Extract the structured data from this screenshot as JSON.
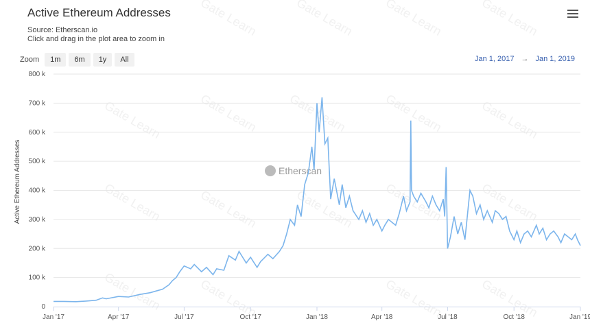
{
  "header": {
    "title": "Active Ethereum Addresses",
    "source": "Source: Etherscan.io",
    "hint": "Click and drag in the plot area to zoom in",
    "menu_icon": "hamburger-menu-icon"
  },
  "zoom": {
    "label": "Zoom",
    "buttons": [
      "1m",
      "6m",
      "1y",
      "All"
    ]
  },
  "range": {
    "from": "Jan 1, 2017",
    "arrow": "→",
    "to": "Jan 1, 2019"
  },
  "watermark": {
    "center": "Etherscan",
    "repeat": "Gate Learn"
  },
  "colors": {
    "line": "#7cb5ec",
    "grid": "#e6e6e6",
    "axis": "#ccd6eb"
  },
  "chart_data": {
    "type": "line",
    "title": "Active Ethereum Addresses",
    "ylabel": "Active Ethereum Addresses",
    "xlabel": "",
    "ylim": [
      0,
      800000
    ],
    "xlim": [
      "2017-01-01",
      "2019-01-01"
    ],
    "yticks": [
      0,
      100000,
      200000,
      300000,
      400000,
      500000,
      600000,
      700000,
      800000
    ],
    "ytick_labels": [
      "0",
      "100 k",
      "200 k",
      "300 k",
      "400 k",
      "500 k",
      "600 k",
      "700 k",
      "800 k"
    ],
    "xticks": [
      "2017-01-01",
      "2017-04-01",
      "2017-07-01",
      "2017-10-01",
      "2018-01-01",
      "2018-04-01",
      "2018-07-01",
      "2018-10-01",
      "2019-01-01"
    ],
    "xtick_labels": [
      "Jan '17",
      "Apr '17",
      "Jul '17",
      "Oct '17",
      "Jan '18",
      "Apr '18",
      "Jul '18",
      "Oct '18",
      "Jan '19"
    ],
    "grid": true,
    "legend": "none",
    "series": [
      {
        "x": [
          "2017-01-01",
          "2017-01-15",
          "2017-02-01",
          "2017-02-15",
          "2017-03-01",
          "2017-03-10",
          "2017-03-15",
          "2017-04-01",
          "2017-04-15",
          "2017-05-01",
          "2017-05-15",
          "2017-05-25",
          "2017-06-01",
          "2017-06-10",
          "2017-06-15",
          "2017-06-20",
          "2017-06-25",
          "2017-07-01",
          "2017-07-10",
          "2017-07-15",
          "2017-07-25",
          "2017-08-01",
          "2017-08-10",
          "2017-08-15",
          "2017-08-25",
          "2017-09-01",
          "2017-09-10",
          "2017-09-15",
          "2017-09-25",
          "2017-10-01",
          "2017-10-10",
          "2017-10-15",
          "2017-10-25",
          "2017-11-01",
          "2017-11-10",
          "2017-11-15",
          "2017-11-20",
          "2017-11-25",
          "2017-12-01",
          "2017-12-05",
          "2017-12-10",
          "2017-12-15",
          "2017-12-20",
          "2017-12-25",
          "2017-12-28",
          "2018-01-01",
          "2018-01-04",
          "2018-01-08",
          "2018-01-12",
          "2018-01-16",
          "2018-01-20",
          "2018-01-25",
          "2018-02-01",
          "2018-02-05",
          "2018-02-10",
          "2018-02-15",
          "2018-02-20",
          "2018-02-28",
          "2018-03-05",
          "2018-03-10",
          "2018-03-15",
          "2018-03-20",
          "2018-03-25",
          "2018-04-01",
          "2018-04-05",
          "2018-04-10",
          "2018-04-15",
          "2018-04-20",
          "2018-04-25",
          "2018-05-01",
          "2018-05-05",
          "2018-05-10",
          "2018-05-11",
          "2018-05-12",
          "2018-05-15",
          "2018-05-20",
          "2018-05-25",
          "2018-06-01",
          "2018-06-05",
          "2018-06-10",
          "2018-06-15",
          "2018-06-20",
          "2018-06-25",
          "2018-06-27",
          "2018-06-29",
          "2018-07-01",
          "2018-07-05",
          "2018-07-10",
          "2018-07-15",
          "2018-07-20",
          "2018-07-25",
          "2018-08-01",
          "2018-08-05",
          "2018-08-10",
          "2018-08-15",
          "2018-08-20",
          "2018-08-25",
          "2018-09-01",
          "2018-09-05",
          "2018-09-10",
          "2018-09-15",
          "2018-09-20",
          "2018-09-25",
          "2018-10-01",
          "2018-10-05",
          "2018-10-10",
          "2018-10-15",
          "2018-10-20",
          "2018-10-25",
          "2018-11-01",
          "2018-11-05",
          "2018-11-10",
          "2018-11-15",
          "2018-11-20",
          "2018-11-25",
          "2018-12-01",
          "2018-12-05",
          "2018-12-10",
          "2018-12-15",
          "2018-12-20",
          "2018-12-25",
          "2018-12-28",
          "2019-01-01"
        ],
        "y": [
          18000,
          18000,
          17000,
          19000,
          22000,
          30000,
          27000,
          35000,
          33000,
          42000,
          48000,
          55000,
          60000,
          75000,
          90000,
          100000,
          120000,
          140000,
          130000,
          145000,
          120000,
          135000,
          110000,
          130000,
          125000,
          175000,
          160000,
          190000,
          150000,
          170000,
          135000,
          155000,
          180000,
          165000,
          190000,
          210000,
          250000,
          300000,
          280000,
          350000,
          310000,
          420000,
          460000,
          550000,
          470000,
          700000,
          600000,
          720000,
          560000,
          580000,
          370000,
          440000,
          350000,
          420000,
          340000,
          380000,
          330000,
          300000,
          330000,
          290000,
          320000,
          280000,
          300000,
          260000,
          280000,
          300000,
          290000,
          280000,
          320000,
          380000,
          330000,
          360000,
          640000,
          400000,
          380000,
          360000,
          390000,
          360000,
          340000,
          380000,
          350000,
          330000,
          370000,
          310000,
          480000,
          200000,
          240000,
          310000,
          250000,
          290000,
          230000,
          400000,
          380000,
          320000,
          350000,
          300000,
          330000,
          290000,
          330000,
          320000,
          300000,
          310000,
          260000,
          230000,
          260000,
          220000,
          250000,
          260000,
          240000,
          280000,
          250000,
          270000,
          230000,
          250000,
          260000,
          240000,
          220000,
          250000,
          240000,
          230000,
          250000,
          230000,
          210000
        ]
      }
    ]
  }
}
